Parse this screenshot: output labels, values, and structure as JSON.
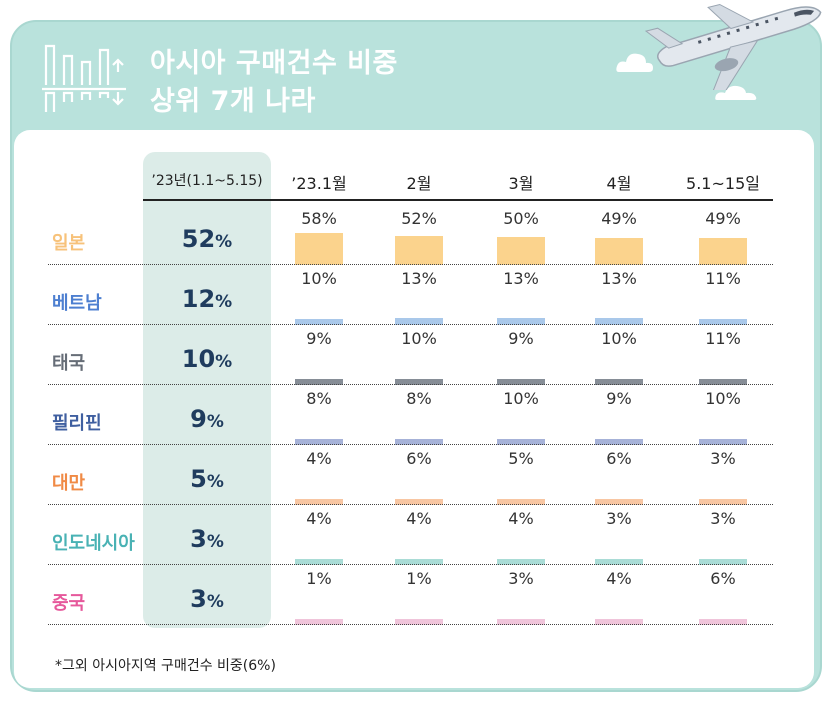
{
  "title": {
    "line1": "아시아 구매건수 비중",
    "line2": "상위 7개 나라"
  },
  "footnote": "*그외 아시아지역 구매건수 비중(6%)",
  "colors": {
    "background": "#b9e2dc",
    "highlight": "#dcece8",
    "overall_text": "#1f3c5e"
  },
  "icons": {
    "title_icon": "bar-chart-arrows-icon",
    "decoration": "airplane-icon"
  },
  "chart_data": {
    "type": "table",
    "columns": [
      "’23년(1.1~5.15)",
      "’23.1월",
      "2월",
      "3월",
      "4월",
      "5.1~15일"
    ],
    "unit": "%",
    "rows": [
      {
        "country": "일본",
        "overall": "52",
        "values": [
          58,
          52,
          50,
          49,
          49
        ],
        "color": "#f7c27a",
        "bar_color": "#fbd38d"
      },
      {
        "country": "베트남",
        "overall": "12",
        "values": [
          10,
          13,
          13,
          13,
          11
        ],
        "color": "#4d7fd0",
        "bar_color": "#a9c8ea"
      },
      {
        "country": "태국",
        "overall": "10",
        "values": [
          9,
          10,
          9,
          10,
          11
        ],
        "color": "#666d77",
        "bar_color": "#868d96"
      },
      {
        "country": "필리핀",
        "overall": "9",
        "values": [
          8,
          8,
          10,
          9,
          10
        ],
        "color": "#3f5fa0",
        "bar_color": "#a6b2d8"
      },
      {
        "country": "대만",
        "overall": "5",
        "values": [
          4,
          6,
          5,
          6,
          3
        ],
        "color": "#f08a45",
        "bar_color": "#f8c6a2"
      },
      {
        "country": "인도네시아",
        "overall": "3",
        "values": [
          4,
          4,
          4,
          3,
          3
        ],
        "color": "#49b2b4",
        "bar_color": "#a9dcd6"
      },
      {
        "country": "중국",
        "overall": "3",
        "values": [
          1,
          1,
          3,
          4,
          6
        ],
        "color": "#e6589b",
        "bar_color": "#f0c4da"
      }
    ]
  }
}
